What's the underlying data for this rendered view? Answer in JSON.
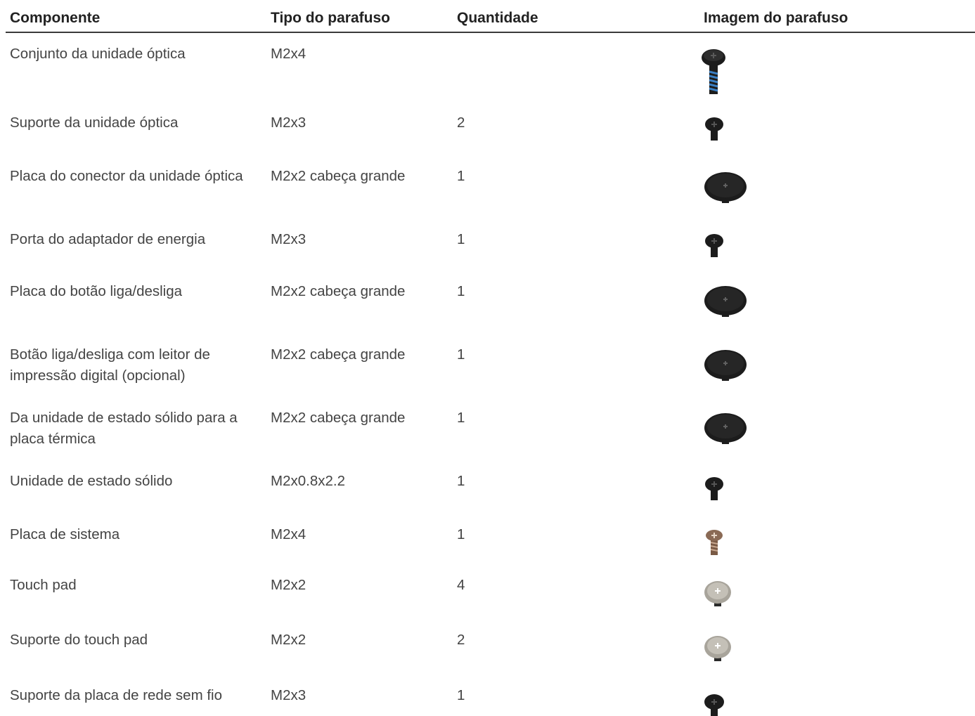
{
  "table": {
    "headers": [
      "Componente",
      "Tipo do parafuso",
      "Quantidade",
      "Imagem do parafuso"
    ],
    "rows": [
      {
        "component": "Conjunto da unidade óptica",
        "type": "M2x4",
        "qty": "",
        "screw_icon": "black-screw-blue-thread-icon"
      },
      {
        "component": "Suporte da unidade óptica",
        "type": "M2x3",
        "qty": "2",
        "screw_icon": "black-screw-icon"
      },
      {
        "component": "Placa do conector da unidade óptica",
        "type": "M2x2 cabeça grande",
        "qty": "1",
        "screw_icon": "black-large-head-screw-icon"
      },
      {
        "component": "Porta do adaptador de energia",
        "type": "M2x3",
        "qty": "1",
        "screw_icon": "black-screw-icon"
      },
      {
        "component": "Placa do botão liga/desliga",
        "type": "M2x2 cabeça grande",
        "qty": "1",
        "screw_icon": "black-large-head-screw-icon"
      },
      {
        "component": "Botão liga/desliga com leitor de impressão digital (opcional)",
        "type": "M2x2 cabeça grande",
        "qty": "1",
        "screw_icon": "black-large-head-screw-icon"
      },
      {
        "component": "Da unidade de estado sólido para a placa térmica",
        "type": "M2x2 cabeça grande",
        "qty": "1",
        "screw_icon": "black-large-head-screw-icon"
      },
      {
        "component": "Unidade de estado sólido",
        "type": "M2x0.8x2.2",
        "qty": "1",
        "screw_icon": "black-screw-icon"
      },
      {
        "component": "Placa de sistema",
        "type": "M2x4",
        "qty": "1",
        "screw_icon": "bronze-screw-icon"
      },
      {
        "component": "Touch pad",
        "type": "M2x2",
        "qty": "4",
        "screw_icon": "silver-screw-icon"
      },
      {
        "component": "Suporte do touch pad",
        "type": "M2x2",
        "qty": "2",
        "screw_icon": "silver-screw-icon"
      },
      {
        "component": "Suporte da placa de rede sem fio",
        "type": "M2x3",
        "qty": "1",
        "screw_icon": "black-screw-icon"
      }
    ]
  },
  "colors": {
    "text": "#444444",
    "header_text": "#222222",
    "rule": "#3a3a3a",
    "screw_black": "#1c1c1c",
    "screw_silver": "#b8b4ab",
    "screw_bronze": "#8a6a55",
    "thread_blue": "#3a7fc4"
  }
}
